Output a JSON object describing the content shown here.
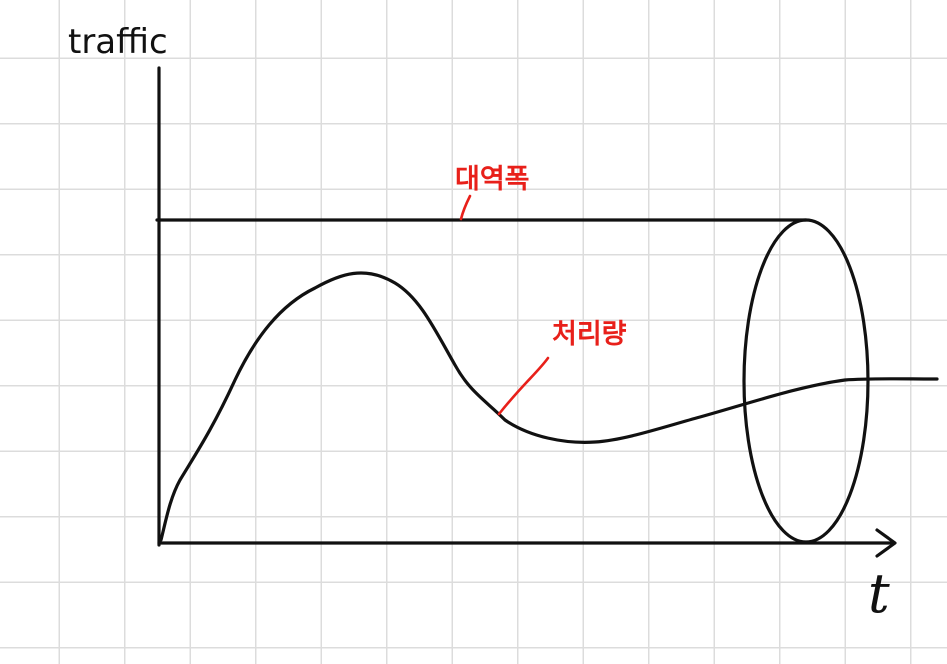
{
  "diagram": {
    "y_axis_label": "traffic",
    "x_axis_label": "t",
    "bandwidth_label": "대역폭",
    "throughput_label": "처리량"
  },
  "colors": {
    "ink": "#111111",
    "annotation": "#e8201a",
    "grid": "#dcdcdc",
    "background": "#ffffff"
  }
}
